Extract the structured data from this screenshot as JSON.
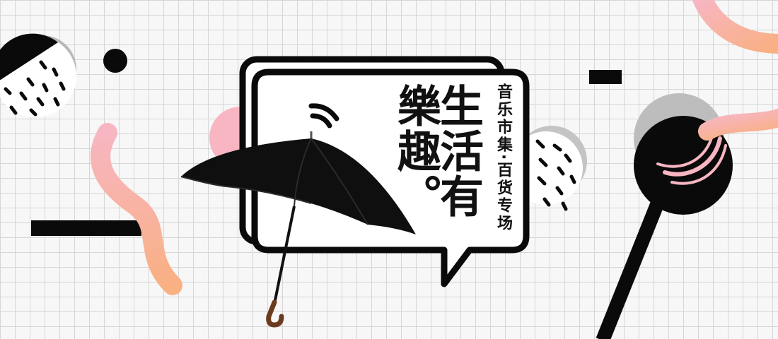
{
  "banner": {
    "title_line1": "生活有",
    "title_line2": "樂趣。",
    "subtitle": "音乐市集·百货专场"
  },
  "colors": {
    "black": "#0a0a0a",
    "pink": "#f7b6c2",
    "peach": "#f9b083",
    "gray": "#b5b5b5",
    "umbrella_handle": "#6b3b1f"
  },
  "icons": [
    "umbrella-icon",
    "wifi-signal-icon"
  ]
}
